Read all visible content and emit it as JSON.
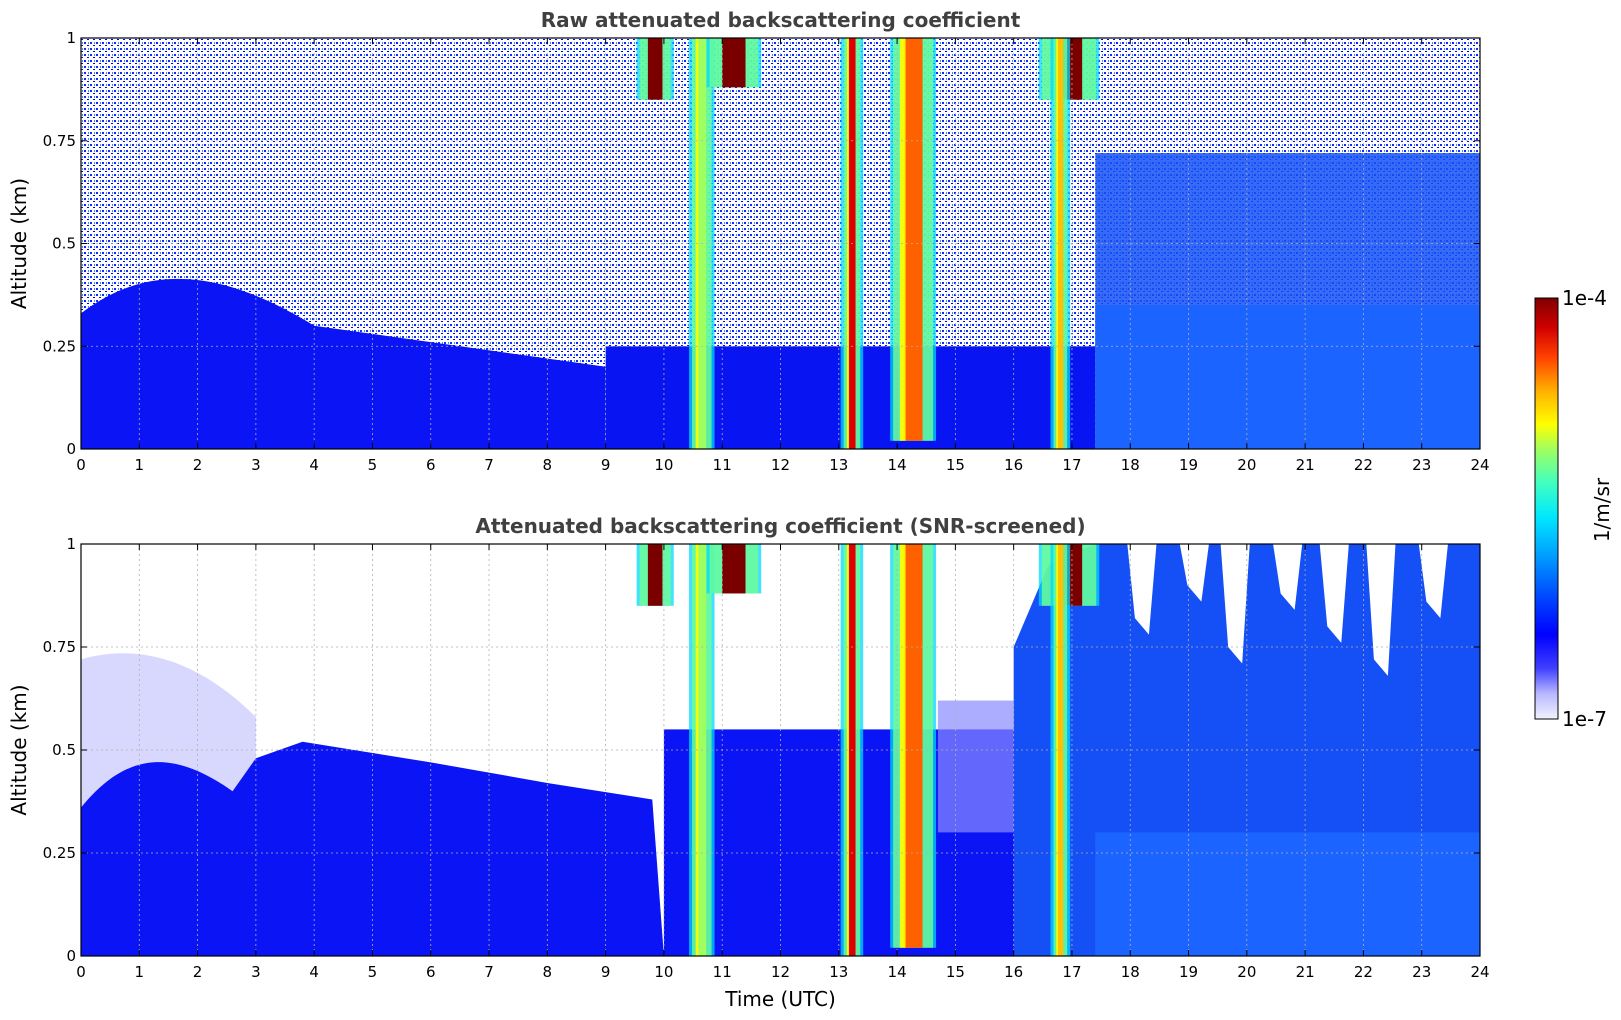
{
  "chart_data": [
    {
      "type": "heatmap",
      "title": "Raw attenuated backscattering coefficient",
      "xlabel": "",
      "ylabel": "Altitude (km)",
      "xlim": [
        0,
        24
      ],
      "ylim": [
        0,
        1
      ],
      "xticks": [
        "0",
        "1",
        "2",
        "3",
        "4",
        "5",
        "6",
        "7",
        "8",
        "9",
        "10",
        "11",
        "12",
        "13",
        "14",
        "15",
        "16",
        "17",
        "18",
        "19",
        "20",
        "21",
        "22",
        "23",
        "24"
      ],
      "yticks": [
        "0",
        "0.25",
        "0.5",
        "0.75",
        "1"
      ],
      "ytick_values": [
        0,
        0.25,
        0.5,
        0.75,
        1
      ],
      "grid": true,
      "screened": false,
      "cloud_events": [
        {
          "start": 9.6,
          "end": 10.1,
          "base_km": 0.85,
          "peak": "dark red"
        },
        {
          "start": 10.5,
          "end": 10.8,
          "base_km": 0.0,
          "peak": "green-yellow"
        },
        {
          "start": 10.8,
          "end": 11.6,
          "base_km": 0.88,
          "peak": "dark red"
        },
        {
          "start": 13.1,
          "end": 13.35,
          "base_km": 0.0,
          "peak": "red"
        },
        {
          "start": 13.95,
          "end": 14.6,
          "base_km": 0.02,
          "peak": "red-yellow"
        },
        {
          "start": 16.5,
          "end": 17.4,
          "base_km": 0.85,
          "peak": "dark red"
        },
        {
          "start": 16.7,
          "end": 16.9,
          "base_km": 0.0,
          "peak": "yellow-orange"
        }
      ]
    },
    {
      "type": "heatmap",
      "title": "Attenuated backscattering coefficient (SNR-screened)",
      "xlabel": "Time (UTC)",
      "ylabel": "Altitude (km)",
      "xlim": [
        0,
        24
      ],
      "ylim": [
        0,
        1
      ],
      "xticks": [
        "0",
        "1",
        "2",
        "3",
        "4",
        "5",
        "6",
        "7",
        "8",
        "9",
        "10",
        "11",
        "12",
        "13",
        "14",
        "15",
        "16",
        "17",
        "18",
        "19",
        "20",
        "21",
        "22",
        "23",
        "24"
      ],
      "yticks": [
        "0",
        "0.25",
        "0.5",
        "0.75",
        "1"
      ],
      "ytick_values": [
        0,
        0.25,
        0.5,
        0.75,
        1
      ],
      "grid": true,
      "screened": true,
      "cloud_events": [
        {
          "start": 9.6,
          "end": 10.1,
          "base_km": 0.85,
          "peak": "dark red"
        },
        {
          "start": 10.5,
          "end": 10.8,
          "base_km": 0.0,
          "peak": "green-yellow"
        },
        {
          "start": 10.8,
          "end": 11.6,
          "base_km": 0.88,
          "peak": "dark red"
        },
        {
          "start": 13.1,
          "end": 13.35,
          "base_km": 0.0,
          "peak": "red"
        },
        {
          "start": 13.95,
          "end": 14.6,
          "base_km": 0.02,
          "peak": "red-yellow"
        },
        {
          "start": 16.5,
          "end": 17.4,
          "base_km": 0.85,
          "peak": "dark red"
        },
        {
          "start": 16.7,
          "end": 16.9,
          "base_km": 0.0,
          "peak": "yellow-orange"
        }
      ]
    }
  ],
  "colorbar": {
    "label": "1/m/sr",
    "max_label": "1e-4",
    "min_label": "1e-7",
    "scale": "log",
    "range": [
      1e-07,
      0.0001
    ],
    "colormap": "jet",
    "colors": [
      "#f0f0ff",
      "#c8c8ff",
      "#9696ff",
      "#0000ff",
      "#0050ff",
      "#00a0ff",
      "#00e0ff",
      "#40ffc0",
      "#a0ff60",
      "#ffff00",
      "#ffb000",
      "#ff5000",
      "#e00000",
      "#800000"
    ]
  }
}
